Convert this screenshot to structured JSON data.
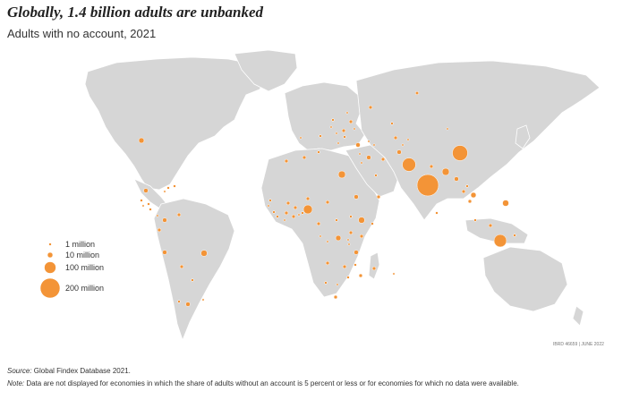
{
  "title": "Globally, 1.4 billion adults are unbanked",
  "subtitle": "Adults with no account, 2021",
  "colors": {
    "bubble": "#f39437",
    "land": "#d6d6d6",
    "text": "#333333"
  },
  "legend": [
    {
      "label": "1 million",
      "value": 1
    },
    {
      "label": "10 million",
      "value": 10
    },
    {
      "label": "100 million",
      "value": 100
    },
    {
      "label": "200 million",
      "value": 200
    }
  ],
  "map_code": "IBRD 46659 | JUNE 2022",
  "source_label": "Source:",
  "source_text": " Global Findex Database 2021.",
  "note_label": "Note:",
  "note_text": " Data are not displayed for economies in which the share of adults without an account is 5 percent or less or for economies for which no data were available.",
  "chart_data": {
    "type": "bubble-map",
    "size_legend_millions": [
      1,
      10,
      100,
      200
    ],
    "largest_markers_millions_approx": [
      {
        "region": "India",
        "value": 230
      },
      {
        "region": "China",
        "value": 130
      },
      {
        "region": "Pakistan",
        "value": 115
      },
      {
        "region": "Indonesia",
        "value": 98
      },
      {
        "region": "Nigeria",
        "value": 38
      }
    ]
  }
}
